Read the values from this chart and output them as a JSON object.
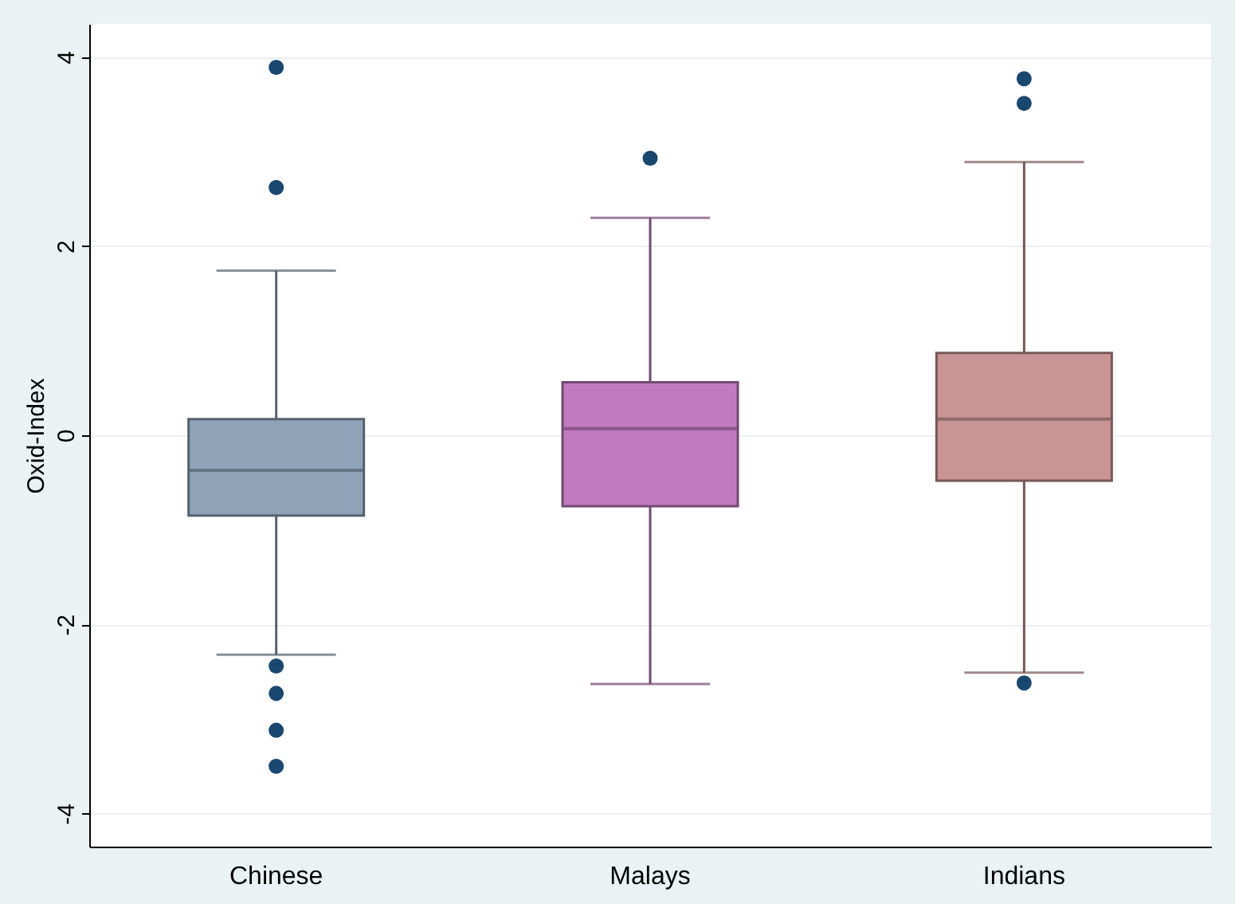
{
  "chart_data": {
    "type": "box",
    "ylabel": "Oxid-Index",
    "categories": [
      "Chinese",
      "Malays",
      "Indians"
    ],
    "boxes": [
      {
        "low": -2.32,
        "q1": -0.85,
        "median": -0.37,
        "q3": 0.17,
        "high": 1.74,
        "outliers": [
          3.89,
          2.62,
          -2.44,
          -2.73,
          -3.12,
          -3.5
        ]
      },
      {
        "low": -2.63,
        "q1": -0.75,
        "median": 0.07,
        "q3": 0.56,
        "high": 2.3,
        "outliers": [
          2.93
        ]
      },
      {
        "low": -2.51,
        "q1": -0.48,
        "median": 0.17,
        "q3": 0.87,
        "high": 2.89,
        "outliers": [
          3.77,
          3.51,
          -2.62
        ]
      }
    ],
    "colors": [
      "#8ea3b8",
      "#c17abf",
      "#c89494"
    ],
    "ylim": [
      -4.35,
      4.35
    ],
    "yticks": [
      -4,
      -2,
      0,
      2,
      4
    ],
    "grid": "y"
  }
}
